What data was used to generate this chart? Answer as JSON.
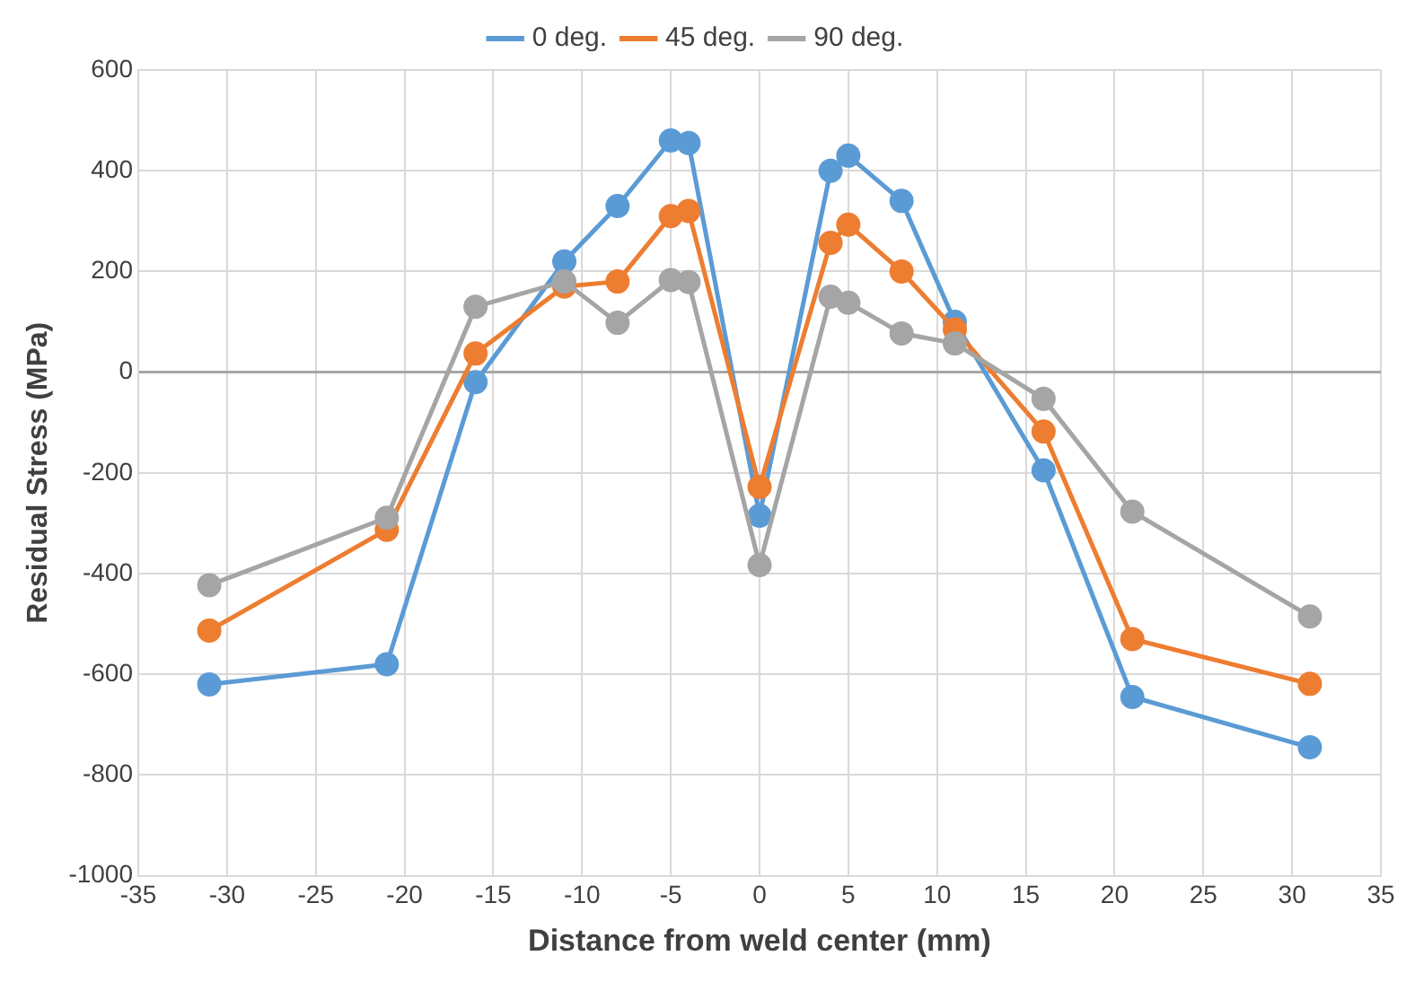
{
  "chart_data": {
    "type": "line",
    "xlabel": "Distance from weld center (mm)",
    "ylabel": "Residual Stress (MPa)",
    "x": [
      -31,
      -21,
      -16,
      -11,
      -8,
      -5,
      -4,
      0,
      4,
      5,
      8,
      11,
      16,
      21,
      31
    ],
    "series": [
      {
        "name": "0 deg.",
        "color": "#5b9bd5",
        "values": [
          -620,
          -580,
          -20,
          220,
          330,
          460,
          455,
          -285,
          400,
          430,
          340,
          100,
          -195,
          -645,
          -745
        ]
      },
      {
        "name": "45 deg.",
        "color": "#ed7d31",
        "values": [
          -513,
          -313,
          37,
          170,
          180,
          310,
          320,
          -228,
          257,
          293,
          200,
          85,
          -118,
          -530,
          -619
        ]
      },
      {
        "name": "90 deg.",
        "color": "#a5a5a5",
        "values": [
          -423,
          -289,
          130,
          180,
          98,
          183,
          179,
          -383,
          150,
          138,
          77,
          57,
          -53,
          -277,
          -485
        ]
      }
    ],
    "xlim": [
      -35,
      35
    ],
    "xticks": [
      -35,
      -30,
      -25,
      -20,
      -15,
      -10,
      -5,
      0,
      5,
      10,
      15,
      20,
      25,
      30,
      35
    ],
    "ylim": [
      -1000,
      600
    ],
    "yticks": [
      -1000,
      -800,
      -600,
      -400,
      -200,
      0,
      200,
      400,
      600
    ],
    "grid": true,
    "legend": "top",
    "marker": "circle",
    "line_style": "solid"
  }
}
